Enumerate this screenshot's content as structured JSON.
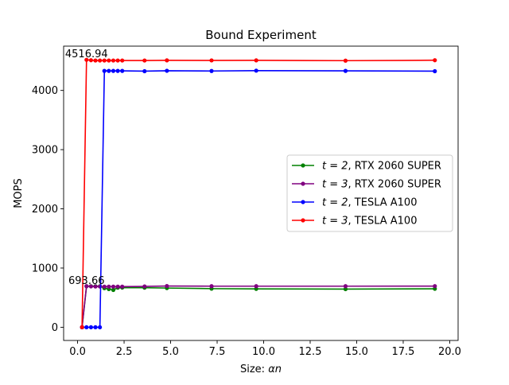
{
  "chart_data": {
    "type": "line",
    "title": "Bound Experiment",
    "xlabel": "Size: ",
    "xlabel_symbol": "αn",
    "ylabel": "MOPS",
    "xlim": [
      -0.75,
      20.45
    ],
    "ylim": [
      -223,
      4748
    ],
    "xticks": [
      0,
      2.5,
      5,
      7.5,
      10,
      12.5,
      15,
      17.5,
      20
    ],
    "xtick_labels": [
      "0.0",
      "2.5",
      "5.0",
      "7.5",
      "10.0",
      "12.5",
      "15.0",
      "17.5",
      "20.0"
    ],
    "yticks": [
      0,
      1000,
      2000,
      3000,
      4000
    ],
    "ytick_labels": [
      "0",
      "1000",
      "2000",
      "3000",
      "4000"
    ],
    "grid": false,
    "legend_position": "center-right",
    "series": [
      {
        "name": "t = 2, RTX 2060 SUPER",
        "legend_math": "t = 2",
        "legend_rest": ", RTX 2060 SUPER",
        "color": "#008000",
        "x": [
          0.24,
          0.48,
          0.72,
          0.96,
          1.2,
          1.44,
          1.68,
          1.92,
          2.16,
          2.4,
          3.6,
          4.8,
          7.2,
          9.6,
          14.4,
          19.2
        ],
        "y": [
          0,
          693,
          693,
          693,
          693,
          660,
          645,
          630,
          668,
          670,
          668,
          662,
          652,
          648,
          644,
          650
        ]
      },
      {
        "name": "t = 3, RTX 2060 SUPER",
        "legend_math": "t = 3",
        "legend_rest": ", RTX 2060 SUPER",
        "color": "#800080",
        "x": [
          0.24,
          0.48,
          0.72,
          0.96,
          1.2,
          1.44,
          1.68,
          1.92,
          2.16,
          2.4,
          3.6,
          4.8,
          7.2,
          9.6,
          14.4,
          19.2
        ],
        "y": [
          0,
          693.66,
          690,
          688,
          688,
          686,
          686,
          686,
          686,
          686,
          690,
          696,
          694,
          694,
          694,
          695
        ]
      },
      {
        "name": "t = 2, TESLA A100",
        "legend_math": "t = 2",
        "legend_rest": ", TESLA A100",
        "color": "#0000ff",
        "x": [
          0.24,
          0.48,
          0.72,
          0.96,
          1.2,
          1.44,
          1.68,
          1.92,
          2.16,
          2.4,
          3.6,
          4.8,
          7.2,
          9.6,
          14.4,
          19.2
        ],
        "y": [
          0,
          0,
          0,
          0,
          0,
          4330,
          4330,
          4330,
          4330,
          4330,
          4325,
          4332,
          4328,
          4334,
          4330,
          4325
        ]
      },
      {
        "name": "t = 3, TESLA A100",
        "legend_math": "t = 3",
        "legend_rest": ", TESLA A100",
        "color": "#ff0000",
        "x": [
          0.24,
          0.48,
          0.72,
          0.96,
          1.2,
          1.44,
          1.68,
          1.92,
          2.16,
          2.4,
          3.6,
          4.8,
          7.2,
          9.6,
          14.4,
          19.2
        ],
        "y": [
          0,
          4516.94,
          4510,
          4505,
          4505,
          4505,
          4505,
          4505,
          4505,
          4505,
          4505,
          4508,
          4507,
          4508,
          4503,
          4510
        ]
      }
    ],
    "annotations": [
      {
        "text": "4516.94",
        "x": 0.48,
        "y": 4516.94
      },
      {
        "text": "693.66",
        "x": 0.48,
        "y": 693.66
      }
    ]
  }
}
